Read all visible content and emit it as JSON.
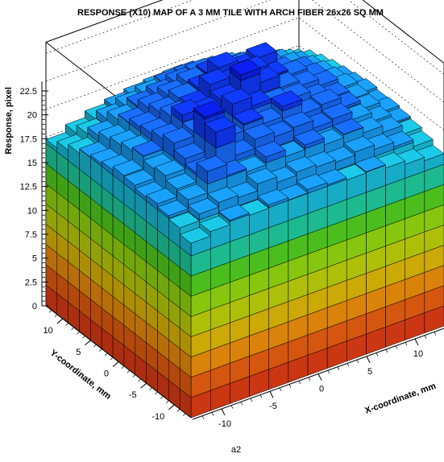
{
  "chart_data": {
    "type": "lego3d",
    "title": "RESPONSE (X10) MAP OF A 3 MM TILE WITH ARCH FIBER 26x26 SQ MM",
    "xlabel": "X-coordinate, mm",
    "ylabel": "Y-coordinate, mm",
    "zlabel": "Response, pixel",
    "footer_label": "a2",
    "xlim": [
      -13,
      13
    ],
    "ylim": [
      -13,
      13
    ],
    "zlim": [
      0,
      23.5
    ],
    "z_ticks": [
      "0",
      "2.5",
      "5",
      "7.5",
      "10",
      "12.5",
      "15",
      "17.5",
      "20",
      "22.5"
    ],
    "x_ticks": [
      "-10",
      "-5",
      "0",
      "5",
      "10"
    ],
    "y_ticks": [
      "-10",
      "-5",
      "0",
      "5",
      "10"
    ],
    "grid": true,
    "palette": [
      "#d63a14",
      "#e05a10",
      "#e58a0c",
      "#d6b206",
      "#b7c90a",
      "#8ed010",
      "#4fc81e",
      "#1ec496",
      "#18b4d0",
      "#1790e0",
      "#1662e6",
      "#0f34e6",
      "#0a1cd8"
    ],
    "grid_size": 13,
    "heights": [
      [
        15.6,
        16.0,
        16.4,
        16.2,
        16.5,
        16.3,
        16.6,
        16.4,
        16.2,
        16.3,
        16.0,
        15.7,
        15.4
      ],
      [
        16.2,
        16.8,
        17.2,
        17.0,
        17.6,
        17.1,
        17.4,
        17.2,
        17.0,
        17.3,
        16.9,
        16.5,
        15.9
      ],
      [
        16.5,
        17.3,
        19.2,
        18.2,
        17.9,
        18.6,
        18.0,
        18.4,
        17.8,
        18.1,
        17.6,
        17.0,
        16.2
      ],
      [
        16.8,
        17.5,
        18.3,
        21.3,
        18.6,
        19.4,
        19.0,
        19.2,
        18.5,
        18.7,
        18.0,
        17.2,
        16.4
      ],
      [
        16.6,
        17.9,
        18.8,
        21.9,
        19.4,
        20.0,
        19.4,
        20.3,
        19.0,
        19.2,
        18.3,
        17.5,
        16.6
      ],
      [
        16.9,
        17.7,
        19.4,
        19.8,
        19.0,
        21.0,
        20.2,
        19.8,
        19.6,
        18.9,
        18.4,
        17.6,
        16.5
      ],
      [
        17.0,
        18.1,
        19.0,
        20.5,
        20.1,
        20.6,
        22.2,
        20.9,
        19.8,
        19.3,
        18.7,
        17.8,
        16.7
      ],
      [
        16.7,
        17.8,
        18.7,
        19.6,
        19.9,
        21.2,
        20.8,
        21.1,
        20.0,
        19.5,
        18.6,
        17.6,
        16.5
      ],
      [
        16.5,
        17.5,
        18.5,
        19.2,
        19.8,
        20.1,
        21.3,
        20.5,
        20.9,
        19.0,
        18.4,
        17.4,
        16.3
      ],
      [
        16.3,
        17.2,
        18.1,
        18.8,
        19.3,
        19.8,
        20.0,
        19.6,
        19.2,
        18.7,
        18.0,
        17.1,
        16.1
      ],
      [
        15.9,
        16.8,
        17.6,
        18.2,
        18.6,
        19.0,
        19.2,
        18.9,
        18.5,
        18.1,
        17.5,
        16.7,
        15.8
      ],
      [
        15.4,
        16.2,
        16.9,
        17.4,
        17.8,
        18.1,
        18.2,
        18.0,
        17.7,
        17.3,
        16.8,
        16.1,
        15.4
      ],
      [
        14.8,
        15.5,
        16.1,
        16.5,
        16.8,
        17.0,
        17.1,
        16.9,
        16.6,
        16.3,
        15.9,
        15.3,
        14.7
      ]
    ]
  }
}
